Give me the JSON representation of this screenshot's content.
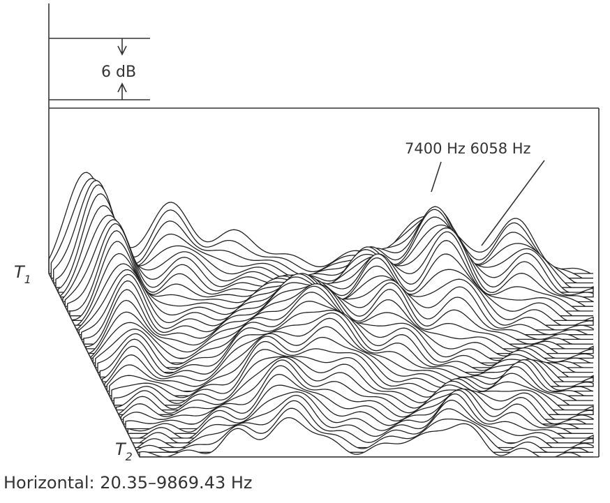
{
  "scale": {
    "label": "6 dB"
  },
  "annotation": {
    "label": "7400 Hz 6058 Hz"
  },
  "time_labels": [
    {
      "letter": "T",
      "sub": "1"
    },
    {
      "letter": "T",
      "sub": "2"
    }
  ],
  "caption": "Horizontal: 20.35–9869.43 Hz"
}
